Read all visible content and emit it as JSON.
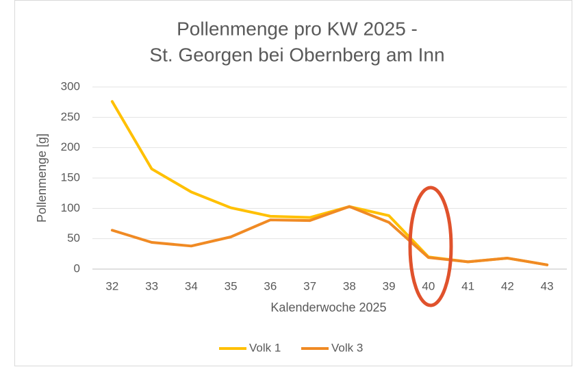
{
  "chart_data": {
    "type": "line",
    "title": [
      "Pollenmenge pro KW 2025 -",
      "St. Georgen bei Obernberg am Inn"
    ],
    "x_label": "Kalenderwoche 2025",
    "y_label": "Pollenmenge [g]",
    "categories": [
      "32",
      "33",
      "34",
      "35",
      "36",
      "37",
      "38",
      "39",
      "40",
      "41",
      "42",
      "43"
    ],
    "series": [
      {
        "name": "Volk 1",
        "color": "#ffc000",
        "values": [
          276,
          165,
          127,
          101,
          87,
          85,
          103,
          88,
          20,
          12,
          18,
          7
        ]
      },
      {
        "name": "Volk 3",
        "color": "#f08a24",
        "values": [
          64,
          44,
          38,
          53,
          81,
          80,
          103,
          77,
          19,
          12,
          18,
          7
        ]
      }
    ],
    "ylim": [
      0,
      300
    ],
    "yticks": [
      0,
      50,
      100,
      150,
      200,
      250,
      300
    ],
    "grid": true,
    "legend": "bottom"
  }
}
